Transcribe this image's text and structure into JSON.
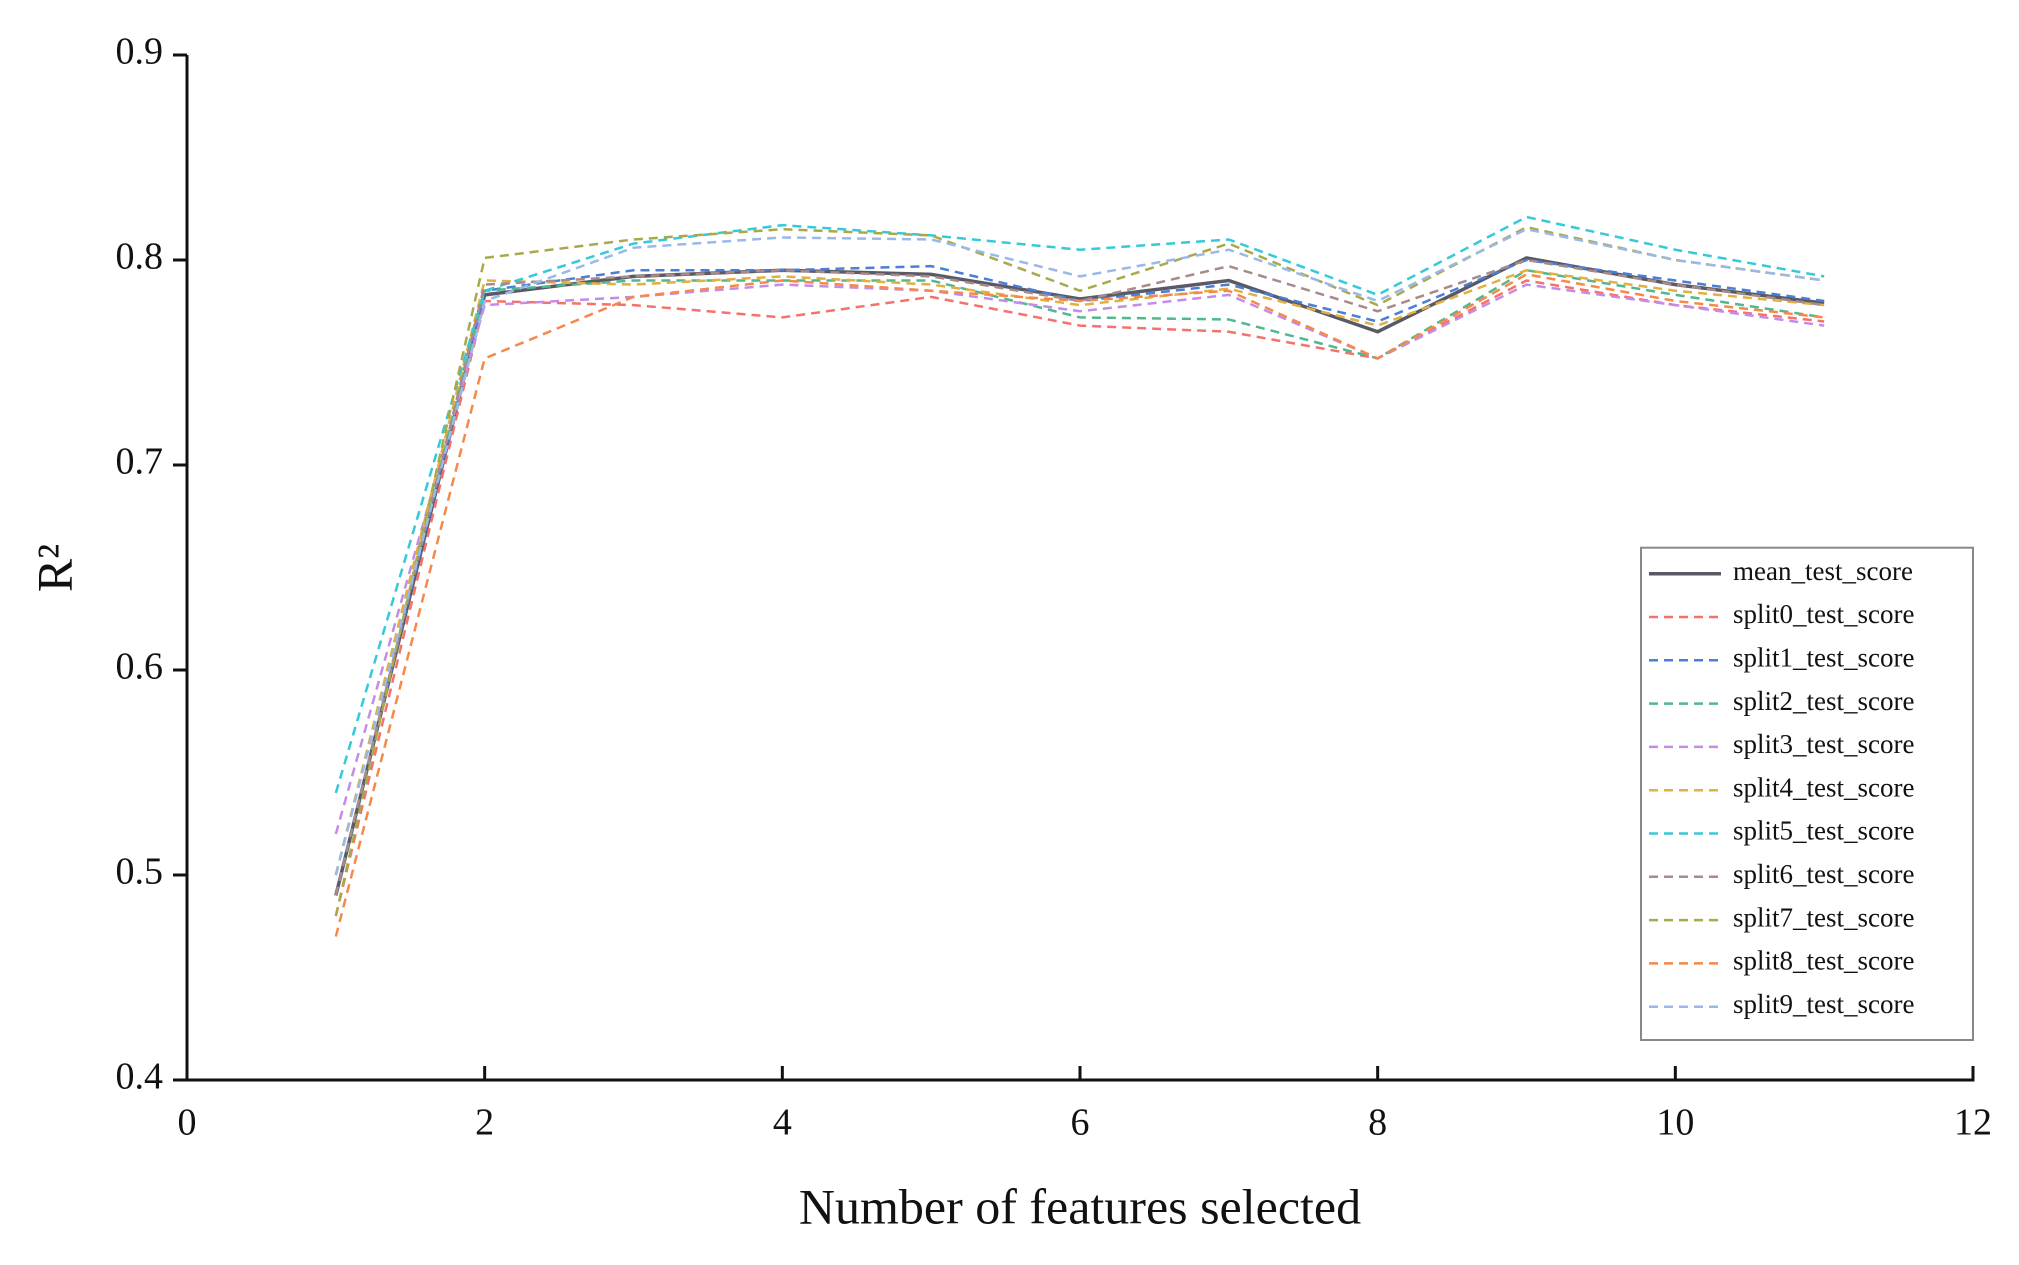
{
  "chart_data": {
    "type": "line",
    "x_label": "Number of features selected",
    "y_label": "R²",
    "x": [
      1,
      2,
      3,
      4,
      5,
      6,
      7,
      8,
      9,
      10,
      11
    ],
    "xlim": [
      0,
      12
    ],
    "xticks": [
      0,
      2,
      4,
      6,
      8,
      10,
      12
    ],
    "ylim": [
      0.4,
      0.9
    ],
    "yticks": [
      0.4,
      0.5,
      0.6,
      0.7,
      0.8,
      0.9
    ],
    "legend": "lower right",
    "series": [
      {
        "name": "mean_test_score",
        "color": "#5a5a66",
        "style": "solid",
        "values": [
          0.49,
          0.783,
          0.792,
          0.795,
          0.793,
          0.781,
          0.79,
          0.765,
          0.801,
          0.788,
          0.779
        ]
      },
      {
        "name": "split0_test_score",
        "color": "#f4726b",
        "style": "dashed",
        "values": [
          0.48,
          0.78,
          0.778,
          0.772,
          0.782,
          0.768,
          0.765,
          0.752,
          0.79,
          0.778,
          0.77
        ]
      },
      {
        "name": "split1_test_score",
        "color": "#4a7fd8",
        "style": "dashed",
        "values": [
          0.49,
          0.785,
          0.795,
          0.795,
          0.797,
          0.78,
          0.788,
          0.77,
          0.8,
          0.79,
          0.78
        ]
      },
      {
        "name": "split2_test_score",
        "color": "#4fb88f",
        "style": "dashed",
        "values": [
          0.5,
          0.785,
          0.79,
          0.79,
          0.79,
          0.772,
          0.771,
          0.752,
          0.795,
          0.783,
          0.772
        ]
      },
      {
        "name": "split3_test_score",
        "color": "#c48be8",
        "style": "dashed",
        "values": [
          0.52,
          0.778,
          0.782,
          0.788,
          0.785,
          0.775,
          0.783,
          0.752,
          0.788,
          0.778,
          0.768
        ]
      },
      {
        "name": "split4_test_score",
        "color": "#e0b040",
        "style": "dashed",
        "values": [
          0.5,
          0.79,
          0.788,
          0.792,
          0.788,
          0.778,
          0.786,
          0.768,
          0.795,
          0.785,
          0.778
        ]
      },
      {
        "name": "split5_test_score",
        "color": "#35c9d9",
        "style": "dashed",
        "values": [
          0.54,
          0.785,
          0.808,
          0.817,
          0.812,
          0.805,
          0.81,
          0.783,
          0.821,
          0.805,
          0.792
        ]
      },
      {
        "name": "split6_test_score",
        "color": "#a98a8a",
        "style": "dashed",
        "values": [
          0.49,
          0.788,
          0.792,
          0.795,
          0.792,
          0.78,
          0.797,
          0.775,
          0.8,
          0.788,
          0.778
        ]
      },
      {
        "name": "split7_test_score",
        "color": "#a9a94a",
        "style": "dashed",
        "values": [
          0.48,
          0.801,
          0.81,
          0.815,
          0.812,
          0.785,
          0.808,
          0.778,
          0.816,
          0.8,
          0.79
        ]
      },
      {
        "name": "split8_test_score",
        "color": "#f5894a",
        "style": "dashed",
        "values": [
          0.47,
          0.752,
          0.782,
          0.79,
          0.785,
          0.78,
          0.785,
          0.752,
          0.793,
          0.78,
          0.772
        ]
      },
      {
        "name": "split9_test_score",
        "color": "#9ab8e8",
        "style": "dashed",
        "values": [
          0.5,
          0.78,
          0.806,
          0.811,
          0.81,
          0.792,
          0.805,
          0.78,
          0.815,
          0.8,
          0.79
        ]
      }
    ]
  }
}
